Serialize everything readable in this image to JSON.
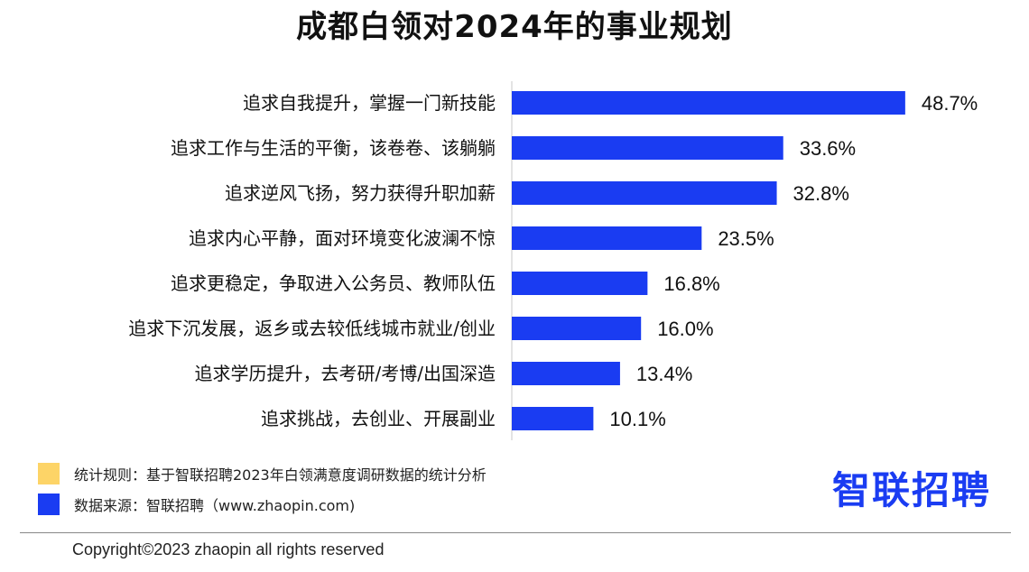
{
  "chart_data": {
    "type": "bar",
    "orientation": "horizontal",
    "title": "成都白领对2024年的事业规划",
    "categories": [
      "追求自我提升，掌握一门新技能",
      "追求工作与生活的平衡，该卷卷、该躺躺",
      "追求逆风飞扬，努力获得升职加薪",
      "追求内心平静，面对环境变化波澜不惊",
      "追求更稳定，争取进入公务员、教师队伍",
      "追求下沉发展，返乡或去较低线城市就业/创业",
      "追求学历提升，去考研/考博/出国深造",
      "追求挑战，去创业、开展副业"
    ],
    "values": [
      48.7,
      33.6,
      32.8,
      23.5,
      16.8,
      16.0,
      13.4,
      10.1
    ],
    "value_labels": [
      "48.7%",
      "33.6%",
      "32.8%",
      "23.5%",
      "16.8%",
      "16.0%",
      "13.4%",
      "10.1%"
    ],
    "bar_color": "#1a3cf2",
    "grid": false
  },
  "legend": {
    "rule_label": "统计规则：基于智联招聘2023年白领满意度调研数据的统计分析",
    "rule_color": "#fdd467",
    "source_label": "数据来源：智联招聘（www.zhaopin.com)",
    "source_color": "#1a3cf2"
  },
  "logo_text": "智联招聘",
  "copyright": "Copyright©2023 zhaopin all rights reserved"
}
